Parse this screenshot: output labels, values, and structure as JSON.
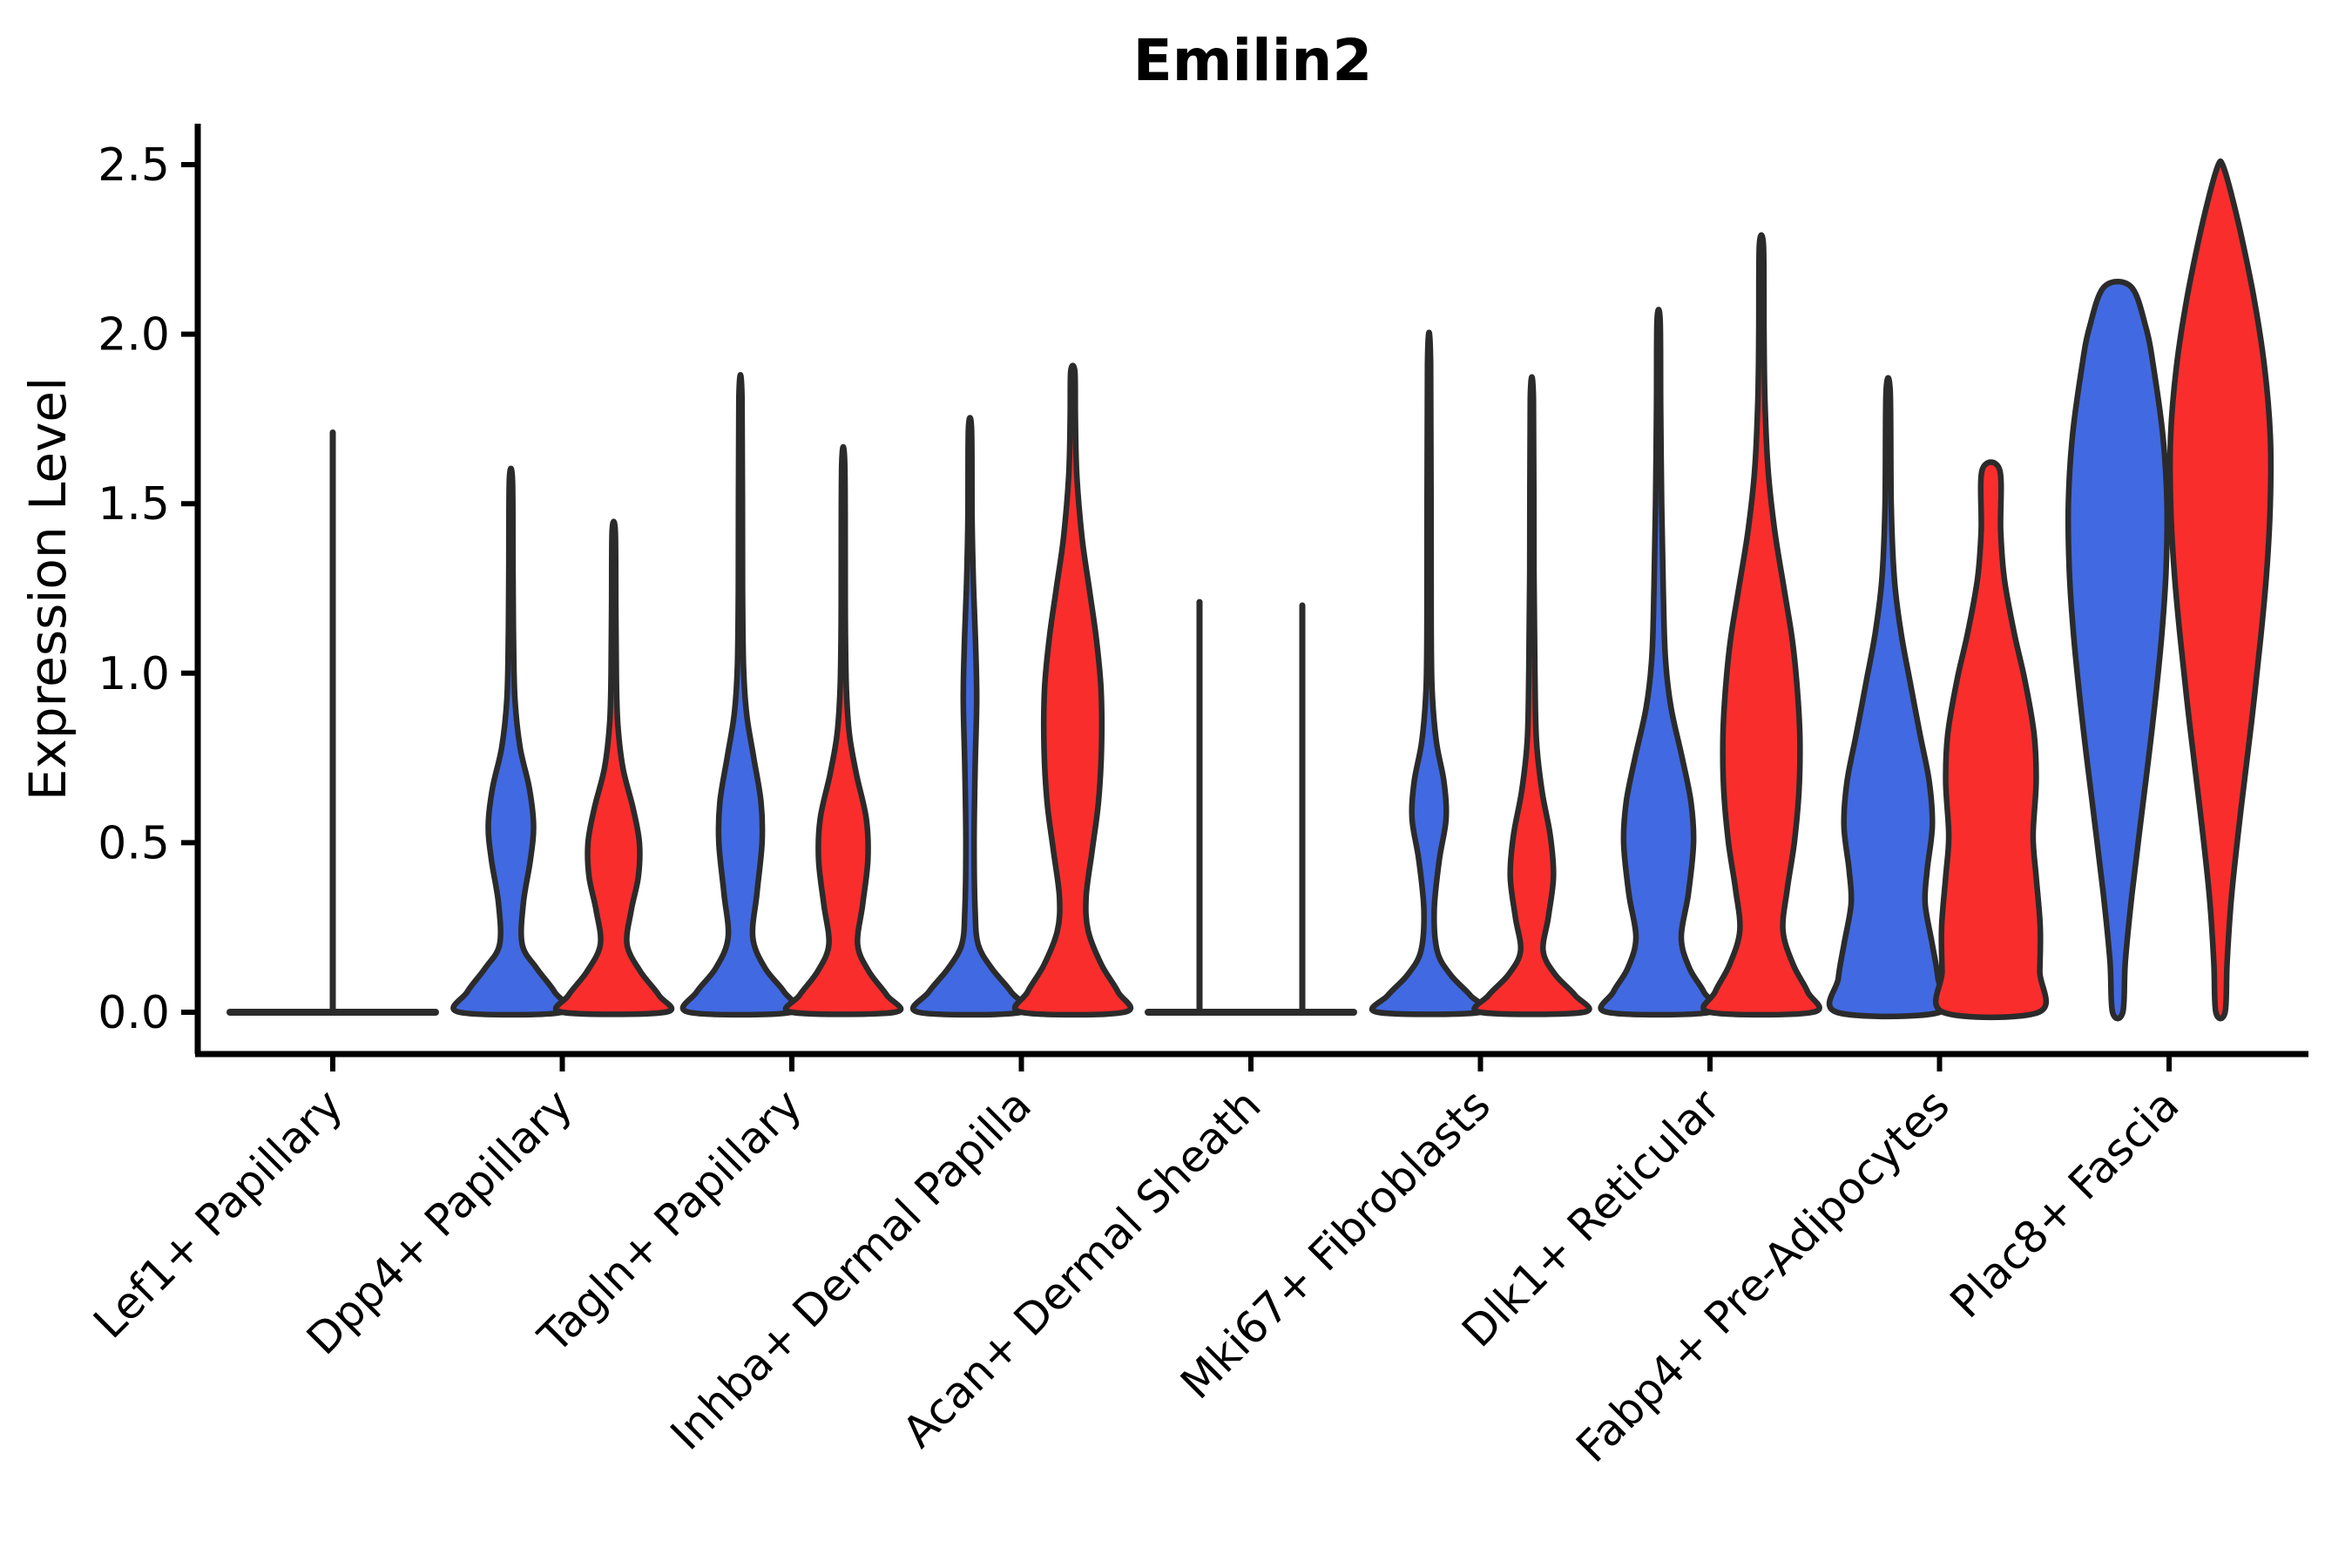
{
  "title": "Emilin2",
  "ylabel": "Expression Level",
  "colors": {
    "series_blue": "#4169E1",
    "series_red": "#FA2D2D",
    "outline": "#2B2B2B",
    "axis": "#000000"
  },
  "axes": {
    "ylim": [
      0,
      2.5
    ],
    "yticks": [
      0.0,
      0.5,
      1.0,
      1.5,
      2.0,
      2.5
    ],
    "ytick_labels": [
      "0.0",
      "0.5",
      "1.0",
      "1.5",
      "2.0",
      "2.5"
    ],
    "grid": "off",
    "legend": "none"
  },
  "chart_data": {
    "type": "violin",
    "subtype": "grouped-split-pairs",
    "title": "Emilin2",
    "xlabel": "",
    "ylabel": "Expression Level",
    "series": [
      {
        "name": "blue",
        "color": "#4169E1"
      },
      {
        "name": "red",
        "color": "#FA2D2D"
      }
    ],
    "categories": [
      "Lef1+ Papillary",
      "Dpp4+ Papillary",
      "Tagln+ Papillary",
      "Inhba+ Dermal Papilla",
      "Acan+ Dermal Sheath",
      "Mki67+ Fibroblasts",
      "Dlk1+ Reticular",
      "Fabp4+ Pre-Adipocytes",
      "Plac8+ Fascia"
    ],
    "groups": [
      {
        "label": "Lef1+ Papillary",
        "flat_line": true,
        "spikes": [
          {
            "at": "center",
            "top": 1.71
          }
        ],
        "violins": []
      },
      {
        "label": "Dpp4+ Papillary",
        "flat_line": false,
        "spikes": [],
        "violins": [
          {
            "series": "blue",
            "side": "left",
            "max": 1.57,
            "flat_top": false,
            "profile": [
              [
                0,
                1
              ],
              [
                0.06,
                0.85
              ],
              [
                0.13,
                0.5
              ],
              [
                0.2,
                0.22
              ],
              [
                0.32,
                0.24
              ],
              [
                0.45,
                0.38
              ],
              [
                0.55,
                0.44
              ],
              [
                0.66,
                0.36
              ],
              [
                0.78,
                0.18
              ],
              [
                0.92,
                0.08
              ],
              [
                1.1,
                0.05
              ],
              [
                1.3,
                0.04
              ],
              [
                1.57,
                0.03
              ]
            ]
          },
          {
            "series": "red",
            "side": "right",
            "max": 1.42,
            "flat_top": false,
            "profile": [
              [
                0,
                1
              ],
              [
                0.05,
                0.88
              ],
              [
                0.12,
                0.52
              ],
              [
                0.2,
                0.26
              ],
              [
                0.3,
                0.34
              ],
              [
                0.4,
                0.48
              ],
              [
                0.5,
                0.5
              ],
              [
                0.6,
                0.38
              ],
              [
                0.72,
                0.18
              ],
              [
                0.85,
                0.08
              ],
              [
                1.0,
                0.05
              ],
              [
                1.2,
                0.04
              ],
              [
                1.42,
                0.03
              ]
            ]
          }
        ]
      },
      {
        "label": "Tagln+ Papillary",
        "flat_line": false,
        "spikes": [],
        "violins": [
          {
            "series": "blue",
            "side": "left",
            "max": 1.81,
            "flat_top": false,
            "profile": [
              [
                0,
                1
              ],
              [
                0.06,
                0.85
              ],
              [
                0.13,
                0.48
              ],
              [
                0.22,
                0.24
              ],
              [
                0.35,
                0.32
              ],
              [
                0.5,
                0.42
              ],
              [
                0.62,
                0.4
              ],
              [
                0.75,
                0.26
              ],
              [
                0.88,
                0.12
              ],
              [
                1.02,
                0.06
              ],
              [
                1.25,
                0.04
              ],
              [
                1.81,
                0.03
              ]
            ]
          },
          {
            "series": "red",
            "side": "right",
            "max": 1.61,
            "flat_top": false,
            "profile": [
              [
                0,
                1
              ],
              [
                0.05,
                0.85
              ],
              [
                0.12,
                0.5
              ],
              [
                0.2,
                0.28
              ],
              [
                0.32,
                0.38
              ],
              [
                0.45,
                0.48
              ],
              [
                0.57,
                0.45
              ],
              [
                0.7,
                0.26
              ],
              [
                0.82,
                0.12
              ],
              [
                0.96,
                0.06
              ],
              [
                1.15,
                0.04
              ],
              [
                1.61,
                0.03
              ]
            ]
          }
        ]
      },
      {
        "label": "Inhba+ Dermal Papilla",
        "flat_line": false,
        "spikes": [],
        "violins": [
          {
            "series": "blue",
            "side": "left",
            "max": 1.72,
            "flat_top": false,
            "profile": [
              [
                0,
                1
              ],
              [
                0.06,
                0.8
              ],
              [
                0.13,
                0.42
              ],
              [
                0.2,
                0.16
              ],
              [
                0.3,
                0.1
              ],
              [
                0.5,
                0.08
              ],
              [
                0.72,
                0.1
              ],
              [
                0.92,
                0.13
              ],
              [
                1.08,
                0.11
              ],
              [
                1.25,
                0.07
              ],
              [
                1.45,
                0.04
              ],
              [
                1.72,
                0.03
              ]
            ]
          },
          {
            "series": "red",
            "side": "right",
            "max": 1.89,
            "flat_top": false,
            "profile": [
              [
                0,
                1
              ],
              [
                0.06,
                0.88
              ],
              [
                0.14,
                0.56
              ],
              [
                0.24,
                0.3
              ],
              [
                0.34,
                0.26
              ],
              [
                0.48,
                0.38
              ],
              [
                0.62,
                0.5
              ],
              [
                0.78,
                0.56
              ],
              [
                0.95,
                0.55
              ],
              [
                1.1,
                0.46
              ],
              [
                1.25,
                0.32
              ],
              [
                1.4,
                0.18
              ],
              [
                1.58,
                0.08
              ],
              [
                1.75,
                0.05
              ],
              [
                1.89,
                0.04
              ]
            ]
          }
        ]
      },
      {
        "label": "Acan+ Dermal Sheath",
        "flat_line": true,
        "spikes": [
          {
            "at": "left",
            "top": 1.21
          },
          {
            "at": "right",
            "top": 1.2
          }
        ],
        "violins": []
      },
      {
        "label": "Mki67+ Fibroblasts",
        "flat_line": false,
        "spikes": [],
        "violins": [
          {
            "series": "blue",
            "side": "left",
            "max": 1.91,
            "flat_top": false,
            "profile": [
              [
                0,
                1
              ],
              [
                0.05,
                0.8
              ],
              [
                0.11,
                0.42
              ],
              [
                0.18,
                0.16
              ],
              [
                0.3,
                0.1
              ],
              [
                0.45,
                0.2
              ],
              [
                0.57,
                0.33
              ],
              [
                0.68,
                0.29
              ],
              [
                0.8,
                0.14
              ],
              [
                0.95,
                0.06
              ],
              [
                1.15,
                0.04
              ],
              [
                1.91,
                0.03
              ]
            ]
          },
          {
            "series": "red",
            "side": "right",
            "max": 1.81,
            "flat_top": false,
            "profile": [
              [
                0,
                1
              ],
              [
                0.05,
                0.84
              ],
              [
                0.11,
                0.46
              ],
              [
                0.18,
                0.22
              ],
              [
                0.28,
                0.32
              ],
              [
                0.4,
                0.42
              ],
              [
                0.52,
                0.36
              ],
              [
                0.65,
                0.2
              ],
              [
                0.8,
                0.09
              ],
              [
                1.0,
                0.06
              ],
              [
                1.3,
                0.04
              ],
              [
                1.81,
                0.03
              ]
            ]
          }
        ]
      },
      {
        "label": "Dlk1+ Reticular",
        "flat_line": false,
        "spikes": [],
        "violins": [
          {
            "series": "blue",
            "side": "left",
            "max": 2.04,
            "flat_top": false,
            "profile": [
              [
                0,
                1
              ],
              [
                0.06,
                0.88
              ],
              [
                0.13,
                0.6
              ],
              [
                0.22,
                0.44
              ],
              [
                0.35,
                0.58
              ],
              [
                0.5,
                0.68
              ],
              [
                0.62,
                0.63
              ],
              [
                0.75,
                0.46
              ],
              [
                0.9,
                0.24
              ],
              [
                1.05,
                0.13
              ],
              [
                1.25,
                0.09
              ],
              [
                1.5,
                0.06
              ],
              [
                1.78,
                0.04
              ],
              [
                2.04,
                0.03
              ]
            ]
          },
          {
            "series": "red",
            "side": "right",
            "max": 2.26,
            "flat_top": false,
            "profile": [
              [
                0,
                1
              ],
              [
                0.06,
                0.9
              ],
              [
                0.14,
                0.62
              ],
              [
                0.24,
                0.42
              ],
              [
                0.36,
                0.5
              ],
              [
                0.5,
                0.64
              ],
              [
                0.65,
                0.73
              ],
              [
                0.8,
                0.75
              ],
              [
                0.95,
                0.7
              ],
              [
                1.1,
                0.6
              ],
              [
                1.25,
                0.44
              ],
              [
                1.42,
                0.26
              ],
              [
                1.6,
                0.13
              ],
              [
                1.8,
                0.07
              ],
              [
                2.0,
                0.05
              ],
              [
                2.26,
                0.04
              ]
            ]
          }
        ]
      },
      {
        "label": "Fabp4+ Pre-Adipocytes",
        "flat_line": false,
        "spikes": [],
        "violins": [
          {
            "series": "blue",
            "side": "left",
            "max": 1.83,
            "flat_top": false,
            "profile": [
              [
                0,
                1
              ],
              [
                0.1,
                0.97
              ],
              [
                0.2,
                0.86
              ],
              [
                0.32,
                0.72
              ],
              [
                0.42,
                0.76
              ],
              [
                0.55,
                0.86
              ],
              [
                0.68,
                0.8
              ],
              [
                0.82,
                0.62
              ],
              [
                0.98,
                0.42
              ],
              [
                1.12,
                0.25
              ],
              [
                1.28,
                0.12
              ],
              [
                1.5,
                0.06
              ],
              [
                1.83,
                0.04
              ]
            ]
          },
          {
            "series": "red",
            "side": "right",
            "max": 1.6,
            "flat_top": true,
            "profile": [
              [
                0,
                0.93
              ],
              [
                0.12,
                0.95
              ],
              [
                0.25,
                0.96
              ],
              [
                0.4,
                0.88
              ],
              [
                0.52,
                0.82
              ],
              [
                0.68,
                0.88
              ],
              [
                0.82,
                0.84
              ],
              [
                0.98,
                0.66
              ],
              [
                1.12,
                0.45
              ],
              [
                1.28,
                0.26
              ],
              [
                1.42,
                0.19
              ],
              [
                1.6,
                0.17
              ]
            ]
          }
        ]
      },
      {
        "label": "Plac8+ Fascia",
        "flat_line": false,
        "spikes": [],
        "violins": [
          {
            "series": "blue",
            "side": "left",
            "max": 2.14,
            "flat_top": true,
            "profile": [
              [
                0,
                0.1
              ],
              [
                0.15,
                0.15
              ],
              [
                0.35,
                0.28
              ],
              [
                0.6,
                0.48
              ],
              [
                0.85,
                0.68
              ],
              [
                1.1,
                0.85
              ],
              [
                1.3,
                0.94
              ],
              [
                1.5,
                0.96
              ],
              [
                1.7,
                0.88
              ],
              [
                1.9,
                0.7
              ],
              [
                2.02,
                0.55
              ],
              [
                2.14,
                0.26
              ]
            ]
          },
          {
            "series": "red",
            "side": "right",
            "max": 2.5,
            "flat_top": false,
            "profile": [
              [
                0,
                0.09
              ],
              [
                0.15,
                0.13
              ],
              [
                0.35,
                0.22
              ],
              [
                0.6,
                0.4
              ],
              [
                0.85,
                0.6
              ],
              [
                1.1,
                0.78
              ],
              [
                1.3,
                0.9
              ],
              [
                1.5,
                0.97
              ],
              [
                1.7,
                0.97
              ],
              [
                1.9,
                0.86
              ],
              [
                2.1,
                0.66
              ],
              [
                2.28,
                0.42
              ],
              [
                2.42,
                0.2
              ],
              [
                2.5,
                0.04
              ]
            ]
          }
        ]
      }
    ]
  }
}
